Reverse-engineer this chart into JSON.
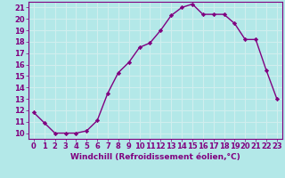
{
  "x": [
    0,
    1,
    2,
    3,
    4,
    5,
    6,
    7,
    8,
    9,
    10,
    11,
    12,
    13,
    14,
    15,
    16,
    17,
    18,
    19,
    20,
    21,
    22,
    23
  ],
  "y": [
    11.8,
    10.9,
    10.0,
    10.0,
    10.0,
    10.2,
    11.1,
    13.5,
    15.3,
    16.2,
    17.5,
    17.9,
    19.0,
    20.3,
    21.0,
    21.3,
    20.4,
    20.4,
    20.4,
    19.6,
    18.2,
    18.2,
    15.5,
    13.0
  ],
  "line_color": "#800080",
  "marker": "D",
  "marker_size": 2.2,
  "background_color": "#b3e8e8",
  "grid_color": "#d0eeee",
  "xlabel": "Windchill (Refroidissement éolien,°C)",
  "ylabel": "",
  "xlim": [
    -0.5,
    23.5
  ],
  "ylim": [
    9.5,
    21.5
  ],
  "yticks": [
    10,
    11,
    12,
    13,
    14,
    15,
    16,
    17,
    18,
    19,
    20,
    21
  ],
  "xticks": [
    0,
    1,
    2,
    3,
    4,
    5,
    6,
    7,
    8,
    9,
    10,
    11,
    12,
    13,
    14,
    15,
    16,
    17,
    18,
    19,
    20,
    21,
    22,
    23
  ],
  "xlabel_fontsize": 6.5,
  "tick_fontsize": 6.0,
  "line_width": 1.0
}
